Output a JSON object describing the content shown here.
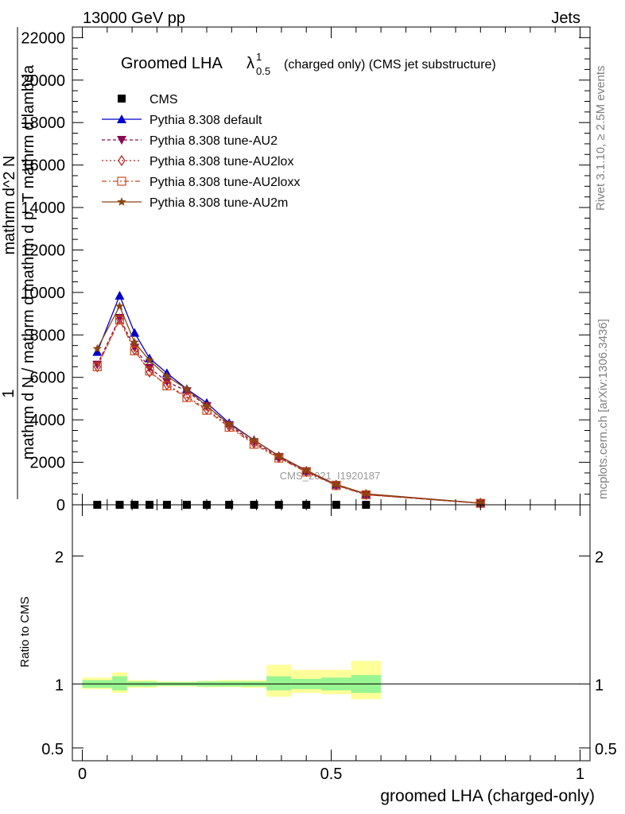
{
  "header": {
    "left": "13000 GeV pp",
    "right": "Jets"
  },
  "side_labels": {
    "rivet": "Rivet 3.1.10, ≥ 2.5M events",
    "mcplots": "mcplots.cern.ch [arXiv:1306.3436]"
  },
  "colors": {
    "cms": "#000000",
    "default": "#0000cc",
    "au2": "#8b0a50",
    "au2lox": "#b22222",
    "au2loxx": "#cc4a1a",
    "au2m": "#8b4513",
    "band_inner": "#99f591",
    "band_outer": "#ffff99"
  },
  "chart_data": [
    {
      "type": "line",
      "title": {
        "main": "Groomed LHA",
        "lambda": "λ",
        "sup": "1",
        "sub": "0.5",
        "suffix": "(charged only) (CMS jet substructure)"
      },
      "ylabel_numerator": "1",
      "ylabel_denominator": "mathrm d N / mathrm d mathrm d p_T mathrm d lambda",
      "ylabel_frac_num": "mathrm d^2 N",
      "ylim": [
        0,
        22500
      ],
      "yticks": [
        0,
        2000,
        4000,
        6000,
        8000,
        10000,
        12000,
        14000,
        16000,
        18000,
        20000,
        22000
      ],
      "ytick_labels": [
        "0",
        "2000",
        "4000",
        "6000",
        "8000",
        "10000",
        "12000",
        "14000",
        "16000",
        "18000",
        "20000",
        "22000"
      ],
      "xlim": [
        -0.02,
        1.02
      ],
      "watermark": "CMS_2021_I1920187",
      "x": [
        0.03,
        0.075,
        0.105,
        0.135,
        0.17,
        0.21,
        0.25,
        0.295,
        0.345,
        0.395,
        0.45,
        0.51,
        0.57,
        0.8
      ],
      "series": [
        {
          "name": "CMS",
          "key": "cms",
          "marker": "square",
          "dash": "",
          "values": [
            0,
            0,
            0,
            0,
            0,
            0,
            0,
            0,
            0,
            0,
            0,
            0,
            0,
            null
          ]
        },
        {
          "name": "Pythia 8.308 default",
          "key": "default",
          "marker": "triangle-up",
          "dash": "",
          "values": [
            7200,
            9850,
            8100,
            6900,
            6200,
            5450,
            4800,
            3850,
            3050,
            2300,
            1600,
            950,
            500,
            80
          ]
        },
        {
          "name": "Pythia 8.308 tune-AU2",
          "key": "au2",
          "marker": "triangle-down",
          "dash": "4,3",
          "values": [
            6600,
            8800,
            7400,
            6450,
            5800,
            5350,
            4650,
            3750,
            2950,
            2250,
            1580,
            930,
            480,
            70
          ]
        },
        {
          "name": "Pythia 8.308 tune-AU2lox",
          "key": "au2lox",
          "marker": "diamond",
          "dash": "2,3",
          "values": [
            6500,
            8750,
            7300,
            6250,
            5650,
            5100,
            4500,
            3700,
            2900,
            2220,
            1560,
            920,
            480,
            70
          ]
        },
        {
          "name": "Pythia 8.308 tune-AU2loxx",
          "key": "au2loxx",
          "marker": "square-open",
          "dash": "6,3,2,3",
          "values": [
            6500,
            8700,
            7250,
            6300,
            5600,
            5050,
            4450,
            3650,
            2850,
            2200,
            1540,
            910,
            470,
            70
          ]
        },
        {
          "name": "Pythia 8.308 tune-AU2m",
          "key": "au2m",
          "marker": "star",
          "dash": "",
          "values": [
            7350,
            9350,
            7650,
            6800,
            6050,
            5450,
            4650,
            3800,
            3050,
            2300,
            1620,
            960,
            520,
            80
          ]
        }
      ]
    },
    {
      "type": "area",
      "ylabel": "Ratio to CMS",
      "xlabel": "groomed LHA (charged-only)",
      "ylim": [
        0.4,
        2.4
      ],
      "ytick_labels": [
        "0.5",
        "1",
        "2"
      ],
      "yticks": [
        0.5,
        1,
        2
      ],
      "xticks": [
        0,
        0.5,
        1
      ],
      "xtick_labels": [
        "0",
        "0.5",
        "1"
      ],
      "bins": [
        0,
        0.06,
        0.09,
        0.15,
        0.19,
        0.23,
        0.27,
        0.32,
        0.37,
        0.42,
        0.48,
        0.54,
        0.6,
        1.0
      ],
      "inner": [
        [
          0.97,
          1.03
        ],
        [
          0.95,
          1.06
        ],
        [
          0.98,
          1.02
        ],
        [
          0.985,
          1.015
        ],
        [
          0.985,
          1.015
        ],
        [
          0.98,
          1.02
        ],
        [
          0.98,
          1.02
        ],
        [
          0.98,
          1.02
        ],
        [
          0.95,
          1.06
        ],
        [
          0.96,
          1.04
        ],
        [
          0.95,
          1.05
        ],
        [
          0.93,
          1.07
        ]
      ],
      "outer": [
        [
          0.96,
          1.05
        ],
        [
          0.93,
          1.09
        ],
        [
          0.97,
          1.03
        ],
        [
          0.98,
          1.02
        ],
        [
          0.98,
          1.02
        ],
        [
          0.975,
          1.025
        ],
        [
          0.975,
          1.03
        ],
        [
          0.97,
          1.03
        ],
        [
          0.9,
          1.15
        ],
        [
          0.93,
          1.11
        ],
        [
          0.92,
          1.11
        ],
        [
          0.88,
          1.18
        ]
      ]
    }
  ]
}
